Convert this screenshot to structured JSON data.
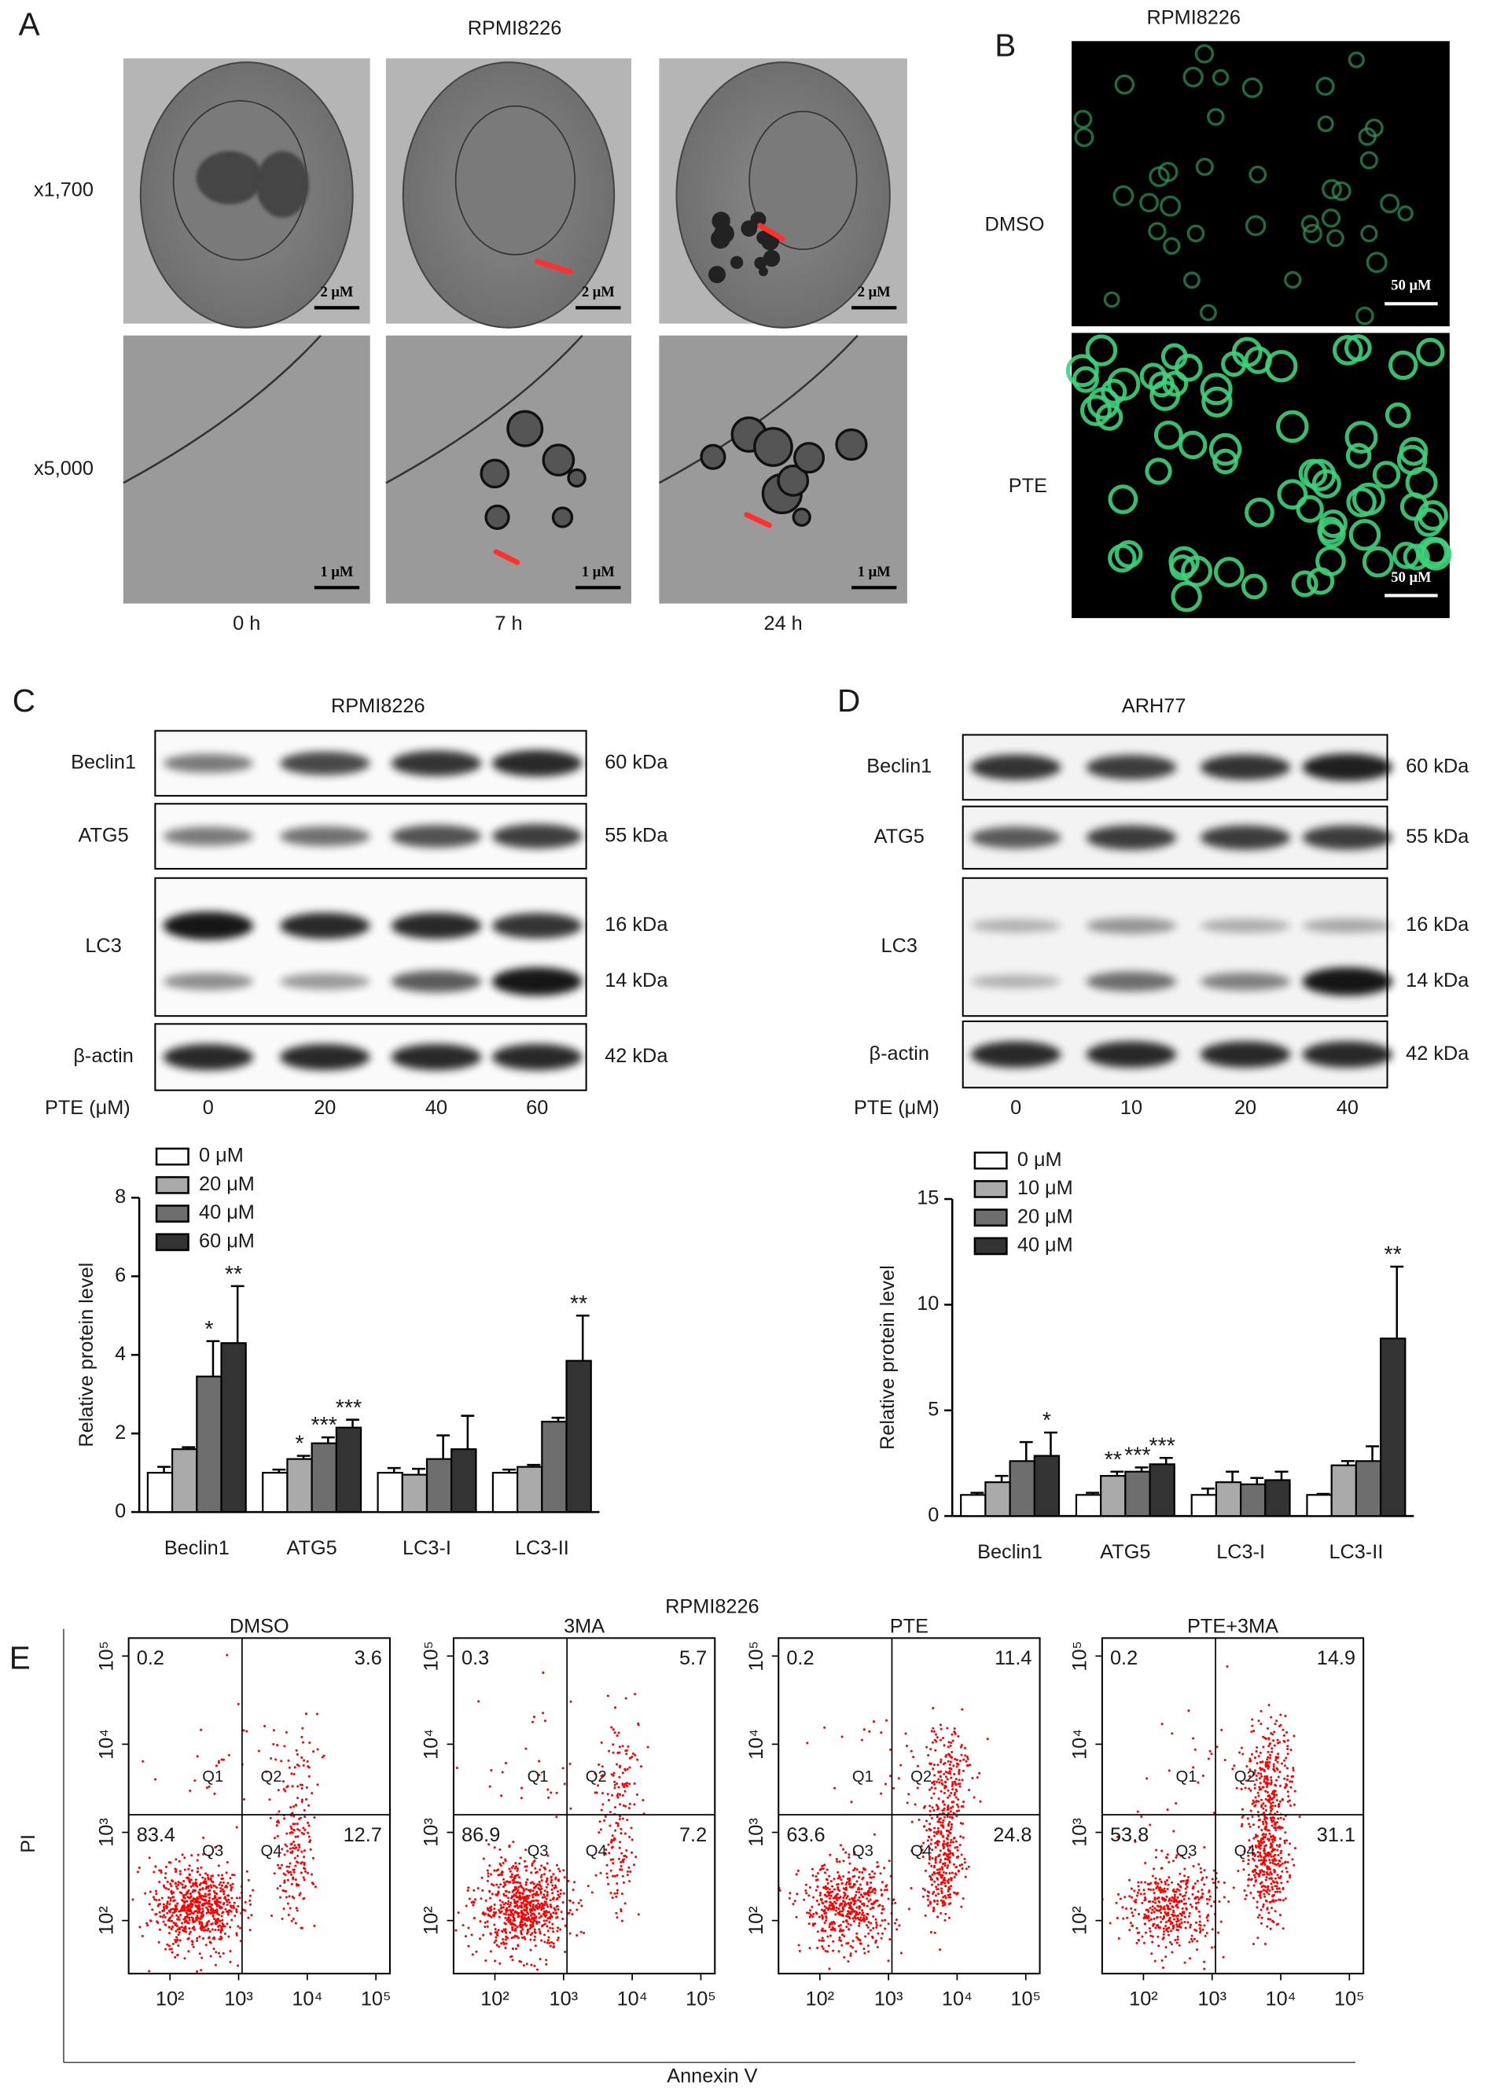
{
  "panel_a": {
    "label": "A",
    "title": "RPMI8226",
    "rows": [
      "x1,700",
      "x5,000"
    ],
    "columns": [
      "0 h",
      "7 h",
      "24 h"
    ],
    "scale_bars": [
      [
        "2 μM",
        "2 μM",
        "2 μM"
      ],
      [
        "1 μM",
        "1 μM",
        "1 μM"
      ]
    ]
  },
  "panel_b": {
    "label": "B",
    "title": "RPMI8226",
    "rows": [
      "DMSO",
      "PTE"
    ],
    "scale_bars": [
      "50 μM",
      "50 μM"
    ]
  },
  "panel_c": {
    "label": "C",
    "title": "RPMI8226",
    "blots": [
      {
        "name": "Beclin1",
        "sizes": [
          "60 kDa"
        ]
      },
      {
        "name": "ATG5",
        "sizes": [
          "55 kDa"
        ]
      },
      {
        "name": "LC3",
        "sizes": [
          "16 kDa",
          "14 kDa"
        ]
      },
      {
        "name": "β-actin",
        "sizes": [
          "42 kDa"
        ]
      }
    ],
    "dose_label": "PTE (μM)",
    "doses": [
      "0",
      "20",
      "40",
      "60"
    ]
  },
  "panel_d": {
    "label": "D",
    "title": "ARH77",
    "blots": [
      {
        "name": "Beclin1",
        "sizes": [
          "60 kDa"
        ]
      },
      {
        "name": "ATG5",
        "sizes": [
          "55 kDa"
        ]
      },
      {
        "name": "LC3",
        "sizes": [
          "16 kDa",
          "14 kDa"
        ]
      },
      {
        "name": "β-actin",
        "sizes": [
          "42 kDa"
        ]
      }
    ],
    "dose_label": "PTE (μM)",
    "doses": [
      "0",
      "10",
      "20",
      "40"
    ]
  },
  "chart_data": [
    {
      "type": "bar",
      "ylabel": "Relative protein level",
      "categories": [
        "Beclin1",
        "ATG5",
        "LC3-I",
        "LC3-II"
      ],
      "ylim": [
        0,
        8
      ],
      "yticks": [
        0,
        2,
        4,
        6,
        8
      ],
      "series": [
        {
          "name": "0 μM",
          "color": "#ffffff",
          "values": [
            1.0,
            1.0,
            1.0,
            1.0
          ],
          "errors": [
            0.15,
            0.08,
            0.12,
            0.08
          ],
          "significance": [
            null,
            null,
            null,
            null
          ]
        },
        {
          "name": "20 μM",
          "color": "#aaaaaa",
          "values": [
            1.6,
            1.35,
            0.95,
            1.15
          ],
          "errors": [
            0.05,
            0.08,
            0.15,
            0.05
          ],
          "significance": [
            null,
            "*",
            null,
            null
          ]
        },
        {
          "name": "40 μM",
          "color": "#6e6e6e",
          "values": [
            3.45,
            1.75,
            1.35,
            2.3
          ],
          "errors": [
            0.9,
            0.15,
            0.6,
            0.1
          ],
          "significance": [
            "*",
            "***",
            null,
            null
          ]
        },
        {
          "name": "60 μM",
          "color": "#333333",
          "values": [
            4.3,
            2.15,
            1.6,
            3.85
          ],
          "errors": [
            1.45,
            0.2,
            0.85,
            1.15
          ],
          "significance": [
            "**",
            "***",
            null,
            "**"
          ]
        }
      ]
    },
    {
      "type": "bar",
      "ylabel": "Relative protein level",
      "categories": [
        "Beclin1",
        "ATG5",
        "LC3-I",
        "LC3-II"
      ],
      "ylim": [
        0,
        15
      ],
      "yticks": [
        0,
        5,
        10,
        15
      ],
      "series": [
        {
          "name": "0 μM",
          "color": "#ffffff",
          "values": [
            1.0,
            1.0,
            1.0,
            1.0
          ],
          "errors": [
            0.1,
            0.1,
            0.3,
            0.05
          ],
          "significance": [
            null,
            null,
            null,
            null
          ]
        },
        {
          "name": "10 μM",
          "color": "#aaaaaa",
          "values": [
            1.6,
            1.9,
            1.6,
            2.4
          ],
          "errors": [
            0.3,
            0.2,
            0.5,
            0.2
          ],
          "significance": [
            null,
            "**",
            null,
            null
          ]
        },
        {
          "name": "20 μM",
          "color": "#6e6e6e",
          "values": [
            2.6,
            2.1,
            1.5,
            2.6
          ],
          "errors": [
            0.9,
            0.2,
            0.3,
            0.7
          ],
          "significance": [
            null,
            "***",
            null,
            null
          ]
        },
        {
          "name": "40 μM",
          "color": "#333333",
          "values": [
            2.85,
            2.45,
            1.7,
            8.4
          ],
          "errors": [
            1.1,
            0.3,
            0.4,
            3.4
          ],
          "significance": [
            "*",
            "***",
            null,
            "**"
          ]
        }
      ]
    }
  ],
  "panel_e": {
    "label": "E",
    "title": "RPMI8226",
    "xlabel": "Annexin V",
    "ylabel": "PI",
    "log_scale": true,
    "dot_color": "#ff0000",
    "quadrant_names": [
      "Q1",
      "Q2",
      "Q3",
      "Q4"
    ],
    "xlim": [
      25,
      160000
    ],
    "ylim": [
      25,
      160000
    ],
    "xticks": [
      {
        "value": 100,
        "label": "10²"
      },
      {
        "value": 1000,
        "label": "10³"
      },
      {
        "value": 10000,
        "label": "10⁴"
      },
      {
        "value": 100000,
        "label": "10⁵"
      }
    ],
    "yticks": [
      {
        "value": 100,
        "label": "10²"
      },
      {
        "value": 1000,
        "label": "10³"
      },
      {
        "value": 10000,
        "label": "10⁴"
      },
      {
        "value": 100000,
        "label": "10⁵"
      }
    ],
    "plots": [
      {
        "title": "DMSO",
        "quadrants": [
          0.2,
          3.6,
          83.4,
          12.7
        ]
      },
      {
        "title": "3MA",
        "quadrants": [
          0.3,
          5.7,
          86.9,
          7.2
        ]
      },
      {
        "title": "PTE",
        "quadrants": [
          0.2,
          11.4,
          63.6,
          24.8
        ]
      },
      {
        "title": "PTE+3MA",
        "quadrants": [
          0.2,
          14.9,
          53.8,
          31.1
        ]
      }
    ]
  }
}
